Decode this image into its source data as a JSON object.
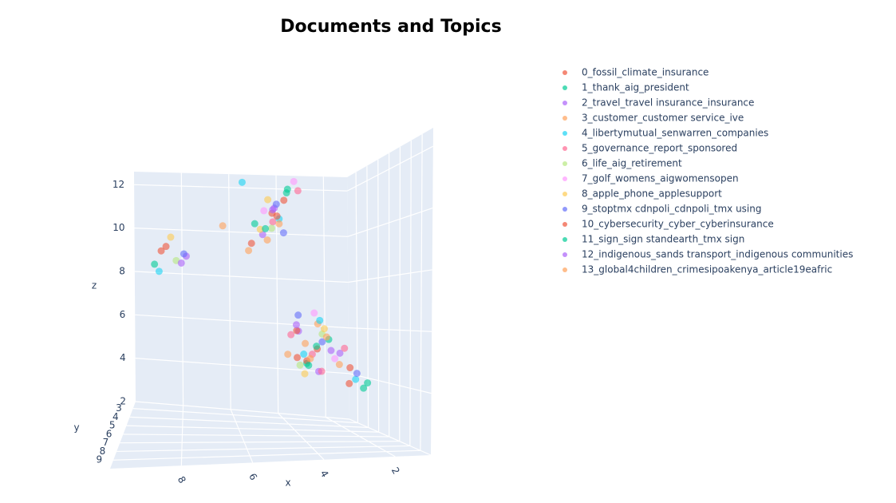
{
  "chart_data": {
    "type": "scatter3d",
    "title": "Documents and Topics",
    "xlabel": "x",
    "ylabel": "y",
    "zlabel": "z",
    "xlim": [
      1,
      10
    ],
    "ylim": [
      2.2,
      10
    ],
    "zlim": [
      2,
      12.6
    ],
    "xticks": [
      2,
      4,
      6,
      8
    ],
    "yticks": [
      3,
      4,
      5,
      6,
      7,
      8,
      9
    ],
    "zticks": [
      2,
      4,
      6,
      8,
      10,
      12
    ],
    "grid": true,
    "legend": "top-right",
    "series": [
      {
        "name": "0_fossil_climate_insurance",
        "color": "#EF553B",
        "x": [
          3.2,
          3.8,
          4.6,
          8.6,
          2.4,
          4.2
        ],
        "y": [
          5.1,
          4.6,
          4.2,
          3.2,
          6.3,
          4.4
        ],
        "z": [
          5.2,
          4.8,
          10.6,
          9.2,
          4.6,
          11.1
        ]
      },
      {
        "name": "1_thank_aig_president",
        "color": "#00CC96",
        "x": [
          3.5,
          2.9,
          5.2,
          9.1,
          4.0,
          2.1
        ],
        "y": [
          4.8,
          5.5,
          3.9,
          2.8,
          4.1,
          6.8
        ],
        "z": [
          4.6,
          5.6,
          10.2,
          8.4,
          11.6,
          3.9
        ]
      },
      {
        "name": "2_travel_travel insurance_insurance",
        "color": "#AB63FA",
        "x": [
          3.9,
          3.1,
          4.4,
          7.8,
          2.6,
          5.0
        ],
        "y": [
          5.3,
          4.9,
          3.6,
          3.5,
          5.8,
          4.5
        ],
        "z": [
          5.9,
          4.3,
          10.9,
          8.8,
          5.1,
          9.7
        ]
      },
      {
        "name": "3_customer_customer service_ive",
        "color": "#FFA15A",
        "x": [
          3.6,
          4.1,
          4.8,
          2.7,
          3.3,
          6.4
        ],
        "y": [
          5.0,
          4.4,
          4.3,
          6.1,
          5.6,
          3.8
        ],
        "z": [
          5.4,
          4.9,
          9.5,
          4.7,
          6.2,
          10.1
        ]
      },
      {
        "name": "4_libertymutual_senwarren_companies",
        "color": "#19D3F3",
        "x": [
          3.0,
          4.3,
          8.9,
          2.3,
          5.6,
          3.7
        ],
        "y": [
          4.7,
          4.0,
          3.0,
          6.6,
          3.4,
          5.2
        ],
        "z": [
          6.3,
          10.4,
          8.1,
          4.2,
          12.0,
          5.0
        ]
      },
      {
        "name": "5_governance_report_sponsored",
        "color": "#FF6692",
        "x": [
          3.4,
          4.0,
          4.5,
          3.8,
          2.5,
          3.2
        ],
        "y": [
          5.2,
          4.5,
          3.8,
          4.9,
          6.0,
          5.7
        ],
        "z": [
          5.0,
          5.7,
          10.3,
          11.4,
          5.3,
          4.4
        ]
      },
      {
        "name": "6_life_aig_retirement",
        "color": "#B6E880",
        "x": [
          3.7,
          4.6,
          8.2,
          3.1
        ],
        "y": [
          4.6,
          4.1,
          3.3,
          5.4
        ],
        "z": [
          4.5,
          10.0,
          8.6,
          5.8
        ]
      },
      {
        "name": "7_golf_womens_aigwomensopen",
        "color": "#FF97FF",
        "x": [
          3.3,
          4.9,
          3.9,
          2.8
        ],
        "y": [
          5.1,
          4.2,
          4.7,
          5.9
        ],
        "z": [
          6.6,
          10.7,
          11.8,
          4.9
        ]
      },
      {
        "name": "8_apple_phone_applesupport",
        "color": "#FECB52",
        "x": [
          3.6,
          4.7,
          8.4,
          3.0,
          5.1
        ],
        "y": [
          4.9,
          3.9,
          3.4,
          5.3,
          4.6
        ],
        "z": [
          4.2,
          11.2,
          9.6,
          6.0,
          9.9
        ]
      },
      {
        "name": "9_stoptmx cdnpoli_cdnpoli_tmx using",
        "color": "#636EFA",
        "x": [
          3.1,
          4.2,
          7.9,
          2.2,
          4.4,
          3.8
        ],
        "y": [
          5.4,
          4.3,
          3.2,
          6.4,
          4.0,
          4.8
        ],
        "z": [
          5.5,
          9.8,
          8.9,
          4.4,
          11.0,
          6.5
        ]
      },
      {
        "name": "10_cybersecurity_cyber_cyberinsurance",
        "color": "#EF553B",
        "x": [
          3.5,
          4.4,
          8.8,
          2.4,
          3.9,
          5.3
        ],
        "y": [
          4.8,
          4.1,
          3.1,
          6.2,
          5.0,
          3.7
        ],
        "z": [
          4.7,
          10.5,
          9.0,
          4.0,
          5.9,
          9.4
        ]
      },
      {
        "name": "11_sign_sign standearth_tmx sign",
        "color": "#00CC96",
        "x": [
          3.2,
          4.1,
          2.0,
          3.6,
          4.8
        ],
        "y": [
          5.0,
          4.4,
          6.9,
          5.5,
          3.9
        ],
        "z": [
          5.3,
          11.4,
          4.1,
          4.6,
          10.0
        ]
      },
      {
        "name": "12_indigenous_sands transport_indigenous communities",
        "color": "#AB63FA",
        "x": [
          3.8,
          4.5,
          8.0,
          2.9
        ],
        "y": [
          4.5,
          3.8,
          3.3,
          5.8
        ],
        "z": [
          6.1,
          10.8,
          8.5,
          5.2
        ]
      },
      {
        "name": "13_global4children_crimesipoakenya_article19eafric",
        "color": "#FFA15A",
        "x": [
          3.4,
          4.3,
          3.0,
          5.4
        ],
        "y": [
          4.9,
          4.0,
          5.6,
          3.6
        ],
        "z": [
          4.8,
          10.2,
          5.7,
          9.1
        ]
      }
    ]
  }
}
